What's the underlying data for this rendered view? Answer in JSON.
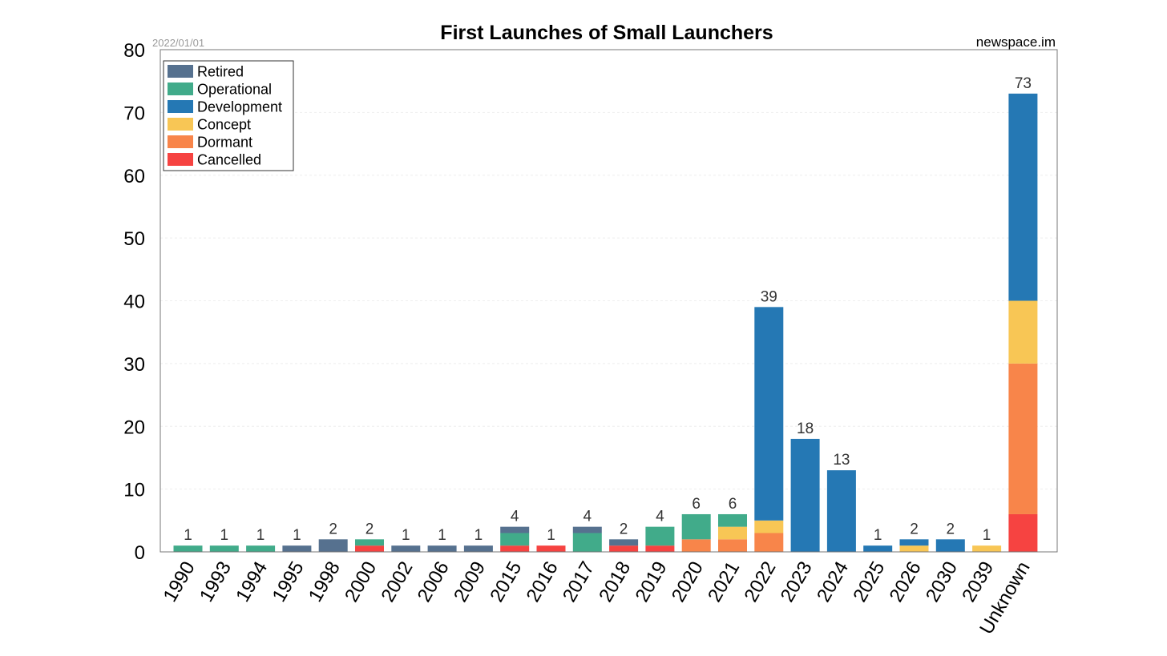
{
  "chart_data": {
    "type": "bar",
    "stacked": true,
    "title": "First Launches of Small Launchers",
    "date_label": "2022/01/01",
    "source_label": "newspace.im",
    "xlabel": "",
    "ylabel": "",
    "ylim": [
      0,
      80
    ],
    "yticks": [
      0,
      10,
      20,
      30,
      40,
      50,
      60,
      70,
      80
    ],
    "grid": true,
    "legend_position": "top-left",
    "categories": [
      "1990",
      "1993",
      "1994",
      "1995",
      "1998",
      "2000",
      "2002",
      "2006",
      "2009",
      "2015",
      "2016",
      "2017",
      "2018",
      "2019",
      "2020",
      "2021",
      "2022",
      "2023",
      "2024",
      "2025",
      "2026",
      "2030",
      "2039",
      "Unknown"
    ],
    "series": [
      {
        "name": "Cancelled",
        "color": "#f64341",
        "values": [
          0,
          0,
          0,
          0,
          0,
          1,
          0,
          0,
          0,
          1,
          1,
          0,
          1,
          1,
          0,
          0,
          0,
          0,
          0,
          0,
          0,
          0,
          0,
          6
        ]
      },
      {
        "name": "Dormant",
        "color": "#f8854a",
        "values": [
          0,
          0,
          0,
          0,
          0,
          0,
          0,
          0,
          0,
          0,
          0,
          0,
          0,
          0,
          2,
          2,
          3,
          0,
          0,
          0,
          0,
          0,
          0,
          24
        ]
      },
      {
        "name": "Concept",
        "color": "#f8c655",
        "values": [
          0,
          0,
          0,
          0,
          0,
          0,
          0,
          0,
          0,
          0,
          0,
          0,
          0,
          0,
          0,
          2,
          2,
          0,
          0,
          0,
          1,
          0,
          1,
          10
        ]
      },
      {
        "name": "Development",
        "color": "#2578b4",
        "values": [
          0,
          0,
          0,
          0,
          0,
          0,
          0,
          0,
          0,
          0,
          0,
          0,
          0,
          0,
          0,
          0,
          34,
          18,
          13,
          1,
          1,
          2,
          0,
          33
        ]
      },
      {
        "name": "Operational",
        "color": "#41ab8a",
        "values": [
          1,
          1,
          1,
          0,
          0,
          1,
          0,
          0,
          0,
          2,
          0,
          3,
          0,
          3,
          4,
          2,
          0,
          0,
          0,
          0,
          0,
          0,
          0,
          0
        ]
      },
      {
        "name": "Retired",
        "color": "#56718f",
        "values": [
          0,
          0,
          0,
          1,
          2,
          0,
          1,
          1,
          1,
          1,
          0,
          1,
          1,
          0,
          0,
          0,
          0,
          0,
          0,
          0,
          0,
          0,
          0,
          0
        ]
      }
    ],
    "legend_order": [
      "Retired",
      "Operational",
      "Development",
      "Concept",
      "Dormant",
      "Cancelled"
    ],
    "totals": [
      1,
      1,
      1,
      1,
      2,
      2,
      1,
      1,
      1,
      4,
      1,
      4,
      2,
      4,
      6,
      6,
      39,
      18,
      13,
      1,
      2,
      2,
      1,
      73
    ]
  }
}
